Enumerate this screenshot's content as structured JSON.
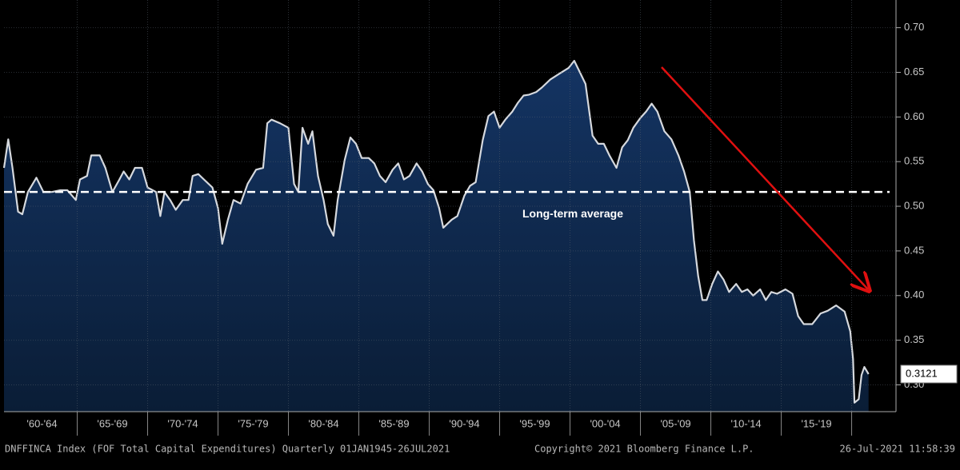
{
  "chart_data": {
    "type": "area",
    "x": [
      1959.8,
      1960.1,
      1960.4,
      1960.8,
      1961.1,
      1961.5,
      1962.1,
      1962.6,
      1963.2,
      1963.8,
      1964.3,
      1964.9,
      1965.2,
      1965.7,
      1966.0,
      1966.6,
      1967.0,
      1967.5,
      1968.0,
      1968.3,
      1968.7,
      1969.1,
      1969.6,
      1970.0,
      1970.6,
      1970.9,
      1971.2,
      1971.6,
      1972.0,
      1972.5,
      1972.9,
      1973.2,
      1973.6,
      1974.0,
      1974.6,
      1975.0,
      1975.3,
      1975.7,
      1976.1,
      1976.6,
      1977.1,
      1977.7,
      1978.2,
      1978.5,
      1978.8,
      1979.4,
      1980.0,
      1980.4,
      1980.7,
      1981.0,
      1981.4,
      1981.7,
      1982.1,
      1982.5,
      1982.8,
      1983.2,
      1983.5,
      1984.0,
      1984.4,
      1984.8,
      1985.2,
      1985.7,
      1986.1,
      1986.5,
      1986.9,
      1987.4,
      1987.8,
      1988.2,
      1988.6,
      1989.1,
      1989.5,
      1989.9,
      1990.3,
      1990.7,
      1991.0,
      1991.6,
      1992.0,
      1992.5,
      1992.9,
      1993.3,
      1993.8,
      1994.2,
      1994.6,
      1995.0,
      1995.4,
      1995.9,
      1996.3,
      1996.7,
      1997.1,
      1997.6,
      1998.0,
      1998.6,
      1999.3,
      1999.9,
      2000.3,
      2000.7,
      2001.1,
      2001.6,
      2002.0,
      2002.4,
      2002.8,
      2003.3,
      2003.7,
      2004.1,
      2004.5,
      2005.0,
      2005.4,
      2005.8,
      2006.2,
      2006.7,
      2007.2,
      2007.7,
      2008.1,
      2008.5,
      2008.8,
      2009.1,
      2009.4,
      2009.7,
      2010.1,
      2010.5,
      2010.9,
      2011.3,
      2011.8,
      2012.2,
      2012.6,
      2013.0,
      2013.5,
      2013.9,
      2014.3,
      2014.7,
      2015.3,
      2015.8,
      2016.2,
      2016.6,
      2017.2,
      2017.8,
      2018.3,
      2018.9,
      2019.5,
      2019.9,
      2020.1,
      2020.2,
      2020.5,
      2020.7,
      2020.9,
      2021.2
    ],
    "values": [
      0.543,
      0.575,
      0.543,
      0.494,
      0.491,
      0.516,
      0.532,
      0.516,
      0.516,
      0.518,
      0.518,
      0.507,
      0.53,
      0.534,
      0.557,
      0.557,
      0.543,
      0.516,
      0.53,
      0.539,
      0.53,
      0.543,
      0.543,
      0.521,
      0.516,
      0.489,
      0.516,
      0.507,
      0.496,
      0.507,
      0.507,
      0.534,
      0.536,
      0.53,
      0.521,
      0.498,
      0.458,
      0.485,
      0.507,
      0.503,
      0.525,
      0.541,
      0.543,
      0.593,
      0.597,
      0.593,
      0.588,
      0.525,
      0.516,
      0.588,
      0.57,
      0.584,
      0.534,
      0.507,
      0.48,
      0.467,
      0.507,
      0.552,
      0.577,
      0.57,
      0.554,
      0.554,
      0.548,
      0.534,
      0.527,
      0.541,
      0.548,
      0.53,
      0.534,
      0.548,
      0.539,
      0.525,
      0.518,
      0.498,
      0.476,
      0.485,
      0.489,
      0.512,
      0.523,
      0.527,
      0.574,
      0.601,
      0.606,
      0.588,
      0.597,
      0.606,
      0.616,
      0.624,
      0.625,
      0.628,
      0.633,
      0.642,
      0.649,
      0.655,
      0.663,
      0.65,
      0.637,
      0.579,
      0.57,
      0.57,
      0.557,
      0.543,
      0.566,
      0.574,
      0.588,
      0.599,
      0.606,
      0.615,
      0.606,
      0.584,
      0.575,
      0.557,
      0.539,
      0.516,
      0.462,
      0.422,
      0.395,
      0.395,
      0.413,
      0.427,
      0.418,
      0.404,
      0.413,
      0.404,
      0.407,
      0.4,
      0.407,
      0.395,
      0.404,
      0.402,
      0.407,
      0.402,
      0.377,
      0.368,
      0.368,
      0.38,
      0.383,
      0.389,
      0.382,
      0.36,
      0.329,
      0.28,
      0.284,
      0.311,
      0.32,
      0.3121
    ],
    "color": "#d6d9de",
    "fill": "#0d2748",
    "average": {
      "value": 0.516,
      "label": "Long-term average"
    },
    "xlim": [
      1959.8,
      2023.15
    ],
    "xticks": [
      {
        "value": 1962.5,
        "label": "'60-'64"
      },
      {
        "value": 1967.5,
        "label": "'65-'69"
      },
      {
        "value": 1972.5,
        "label": "'70-'74"
      },
      {
        "value": 1977.5,
        "label": "'75-'79"
      },
      {
        "value": 1982.5,
        "label": "'80-'84"
      },
      {
        "value": 1987.5,
        "label": "'85-'89"
      },
      {
        "value": 1992.5,
        "label": "'90-'94"
      },
      {
        "value": 1997.5,
        "label": "'95-'99"
      },
      {
        "value": 2002.5,
        "label": "'00-'04"
      },
      {
        "value": 2007.5,
        "label": "'05-'09"
      },
      {
        "value": 2012.5,
        "label": "'10-'14"
      },
      {
        "value": 2017.5,
        "label": "'15-'19"
      }
    ],
    "xgrid": [
      1965,
      1970,
      1975,
      1980,
      1985,
      1990,
      1995,
      2000,
      2005,
      2010,
      2015,
      2020
    ],
    "ylim": [
      0.27,
      0.731
    ],
    "yticks": [
      {
        "value": 0.3,
        "label": "0.30"
      },
      {
        "value": 0.35,
        "label": "0.35"
      },
      {
        "value": 0.4,
        "label": "0.40"
      },
      {
        "value": 0.45,
        "label": "0.45"
      },
      {
        "value": 0.5,
        "label": "0.50"
      },
      {
        "value": 0.55,
        "label": "0.55"
      },
      {
        "value": 0.6,
        "label": "0.60"
      },
      {
        "value": 0.65,
        "label": "0.65"
      },
      {
        "value": 0.7,
        "label": "0.70"
      }
    ],
    "grid": true,
    "footer": {
      "source": "DNFFINCA Index (FOF Total Capital Expenditures)  Quarterly 01JAN1945-26JUL2021",
      "copyright": "Copyright© 2021 Bloomberg Finance L.P.",
      "timestamp": "26-Jul-2021 11:58:39"
    }
  }
}
